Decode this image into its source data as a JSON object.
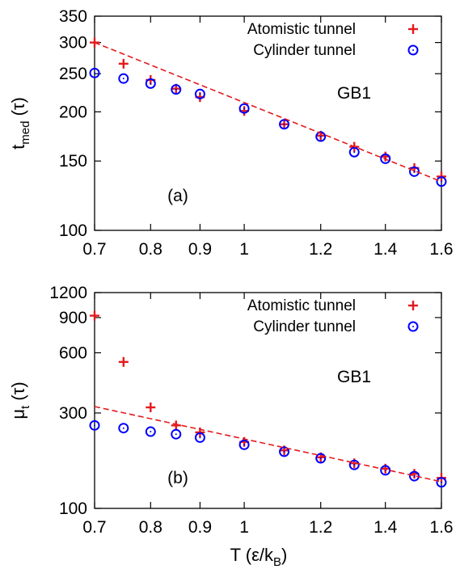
{
  "xlabel_parts": [
    "T (ε/k",
    "B",
    ")"
  ],
  "chart_data": [
    {
      "type": "scatter",
      "panel_label": "(a)",
      "annotation": "GB1",
      "ylabel_parts": [
        "t",
        "med",
        " (τ)"
      ],
      "xlim": [
        0.7,
        1.6
      ],
      "ylim": [
        100,
        350
      ],
      "xscale": "log",
      "yscale": "log",
      "x_ticks": [
        0.7,
        0.8,
        0.9,
        1,
        1.2,
        1.4,
        1.6
      ],
      "x_tick_labels": [
        "0.7",
        "0.8",
        "0.9",
        "1",
        "1.2",
        "1.4",
        "1.6"
      ],
      "y_ticks": [
        100,
        150,
        200,
        250,
        300,
        350
      ],
      "y_tick_labels": [
        "100",
        "150",
        "200",
        "250",
        "300",
        "350"
      ],
      "legend_position": "top-right",
      "series": [
        {
          "name": "Atomistic tunnel",
          "marker": "plus",
          "color": "#e41a1c",
          "x": [
            0.7,
            0.75,
            0.8,
            0.85,
            0.9,
            1.0,
            1.1,
            1.2,
            1.3,
            1.4,
            1.5,
            1.6
          ],
          "y": [
            300,
            265,
            241,
            229,
            218,
            201,
            186,
            174,
            163,
            154,
            144,
            137
          ]
        },
        {
          "name": "Cylinder tunnel",
          "marker": "circle",
          "color": "#0000ff",
          "x": [
            0.7,
            0.75,
            0.8,
            0.85,
            0.9,
            1.0,
            1.1,
            1.2,
            1.3,
            1.4,
            1.5,
            1.6
          ],
          "y": [
            251,
            243,
            236,
            228,
            222,
            204,
            186,
            173,
            158,
            152,
            141,
            133
          ]
        },
        {
          "type": "line",
          "style": "dashed",
          "color": "#e41a1c",
          "x": [
            0.7,
            1.6
          ],
          "y": [
            300,
            133
          ]
        }
      ]
    },
    {
      "type": "scatter",
      "panel_label": "(b)",
      "annotation": "GB1",
      "ylabel_parts": [
        "μ",
        "t",
        " (τ)"
      ],
      "xlim": [
        0.7,
        1.6
      ],
      "ylim": [
        100,
        1200
      ],
      "xscale": "log",
      "yscale": "log",
      "x_ticks": [
        0.7,
        0.8,
        0.9,
        1,
        1.2,
        1.4,
        1.6
      ],
      "x_tick_labels": [
        "0.7",
        "0.8",
        "0.9",
        "1",
        "1.2",
        "1.4",
        "1.6"
      ],
      "y_ticks": [
        100,
        300,
        600,
        900,
        1200
      ],
      "y_tick_labels": [
        "100",
        "300",
        "600",
        "900",
        "1200"
      ],
      "legend_position": "top-right",
      "series": [
        {
          "name": "Atomistic tunnel",
          "marker": "plus",
          "color": "#e41a1c",
          "x": [
            0.7,
            0.75,
            0.8,
            0.85,
            0.9,
            1.0,
            1.1,
            1.2,
            1.3,
            1.4,
            1.5,
            1.6
          ],
          "y": [
            920,
            540,
            320,
            260,
            240,
            215,
            195,
            180,
            168,
            158,
            149,
            142
          ]
        },
        {
          "name": "Cylinder tunnel",
          "marker": "circle",
          "color": "#0000ff",
          "x": [
            0.7,
            0.75,
            0.8,
            0.85,
            0.9,
            1.0,
            1.1,
            1.2,
            1.3,
            1.4,
            1.5,
            1.6
          ],
          "y": [
            260,
            252,
            242,
            235,
            226,
            208,
            192,
            178,
            165,
            155,
            145,
            135
          ]
        },
        {
          "type": "line",
          "style": "dashed",
          "color": "#e41a1c",
          "x": [
            0.7,
            1.6
          ],
          "y": [
            323,
            136
          ]
        }
      ]
    }
  ]
}
